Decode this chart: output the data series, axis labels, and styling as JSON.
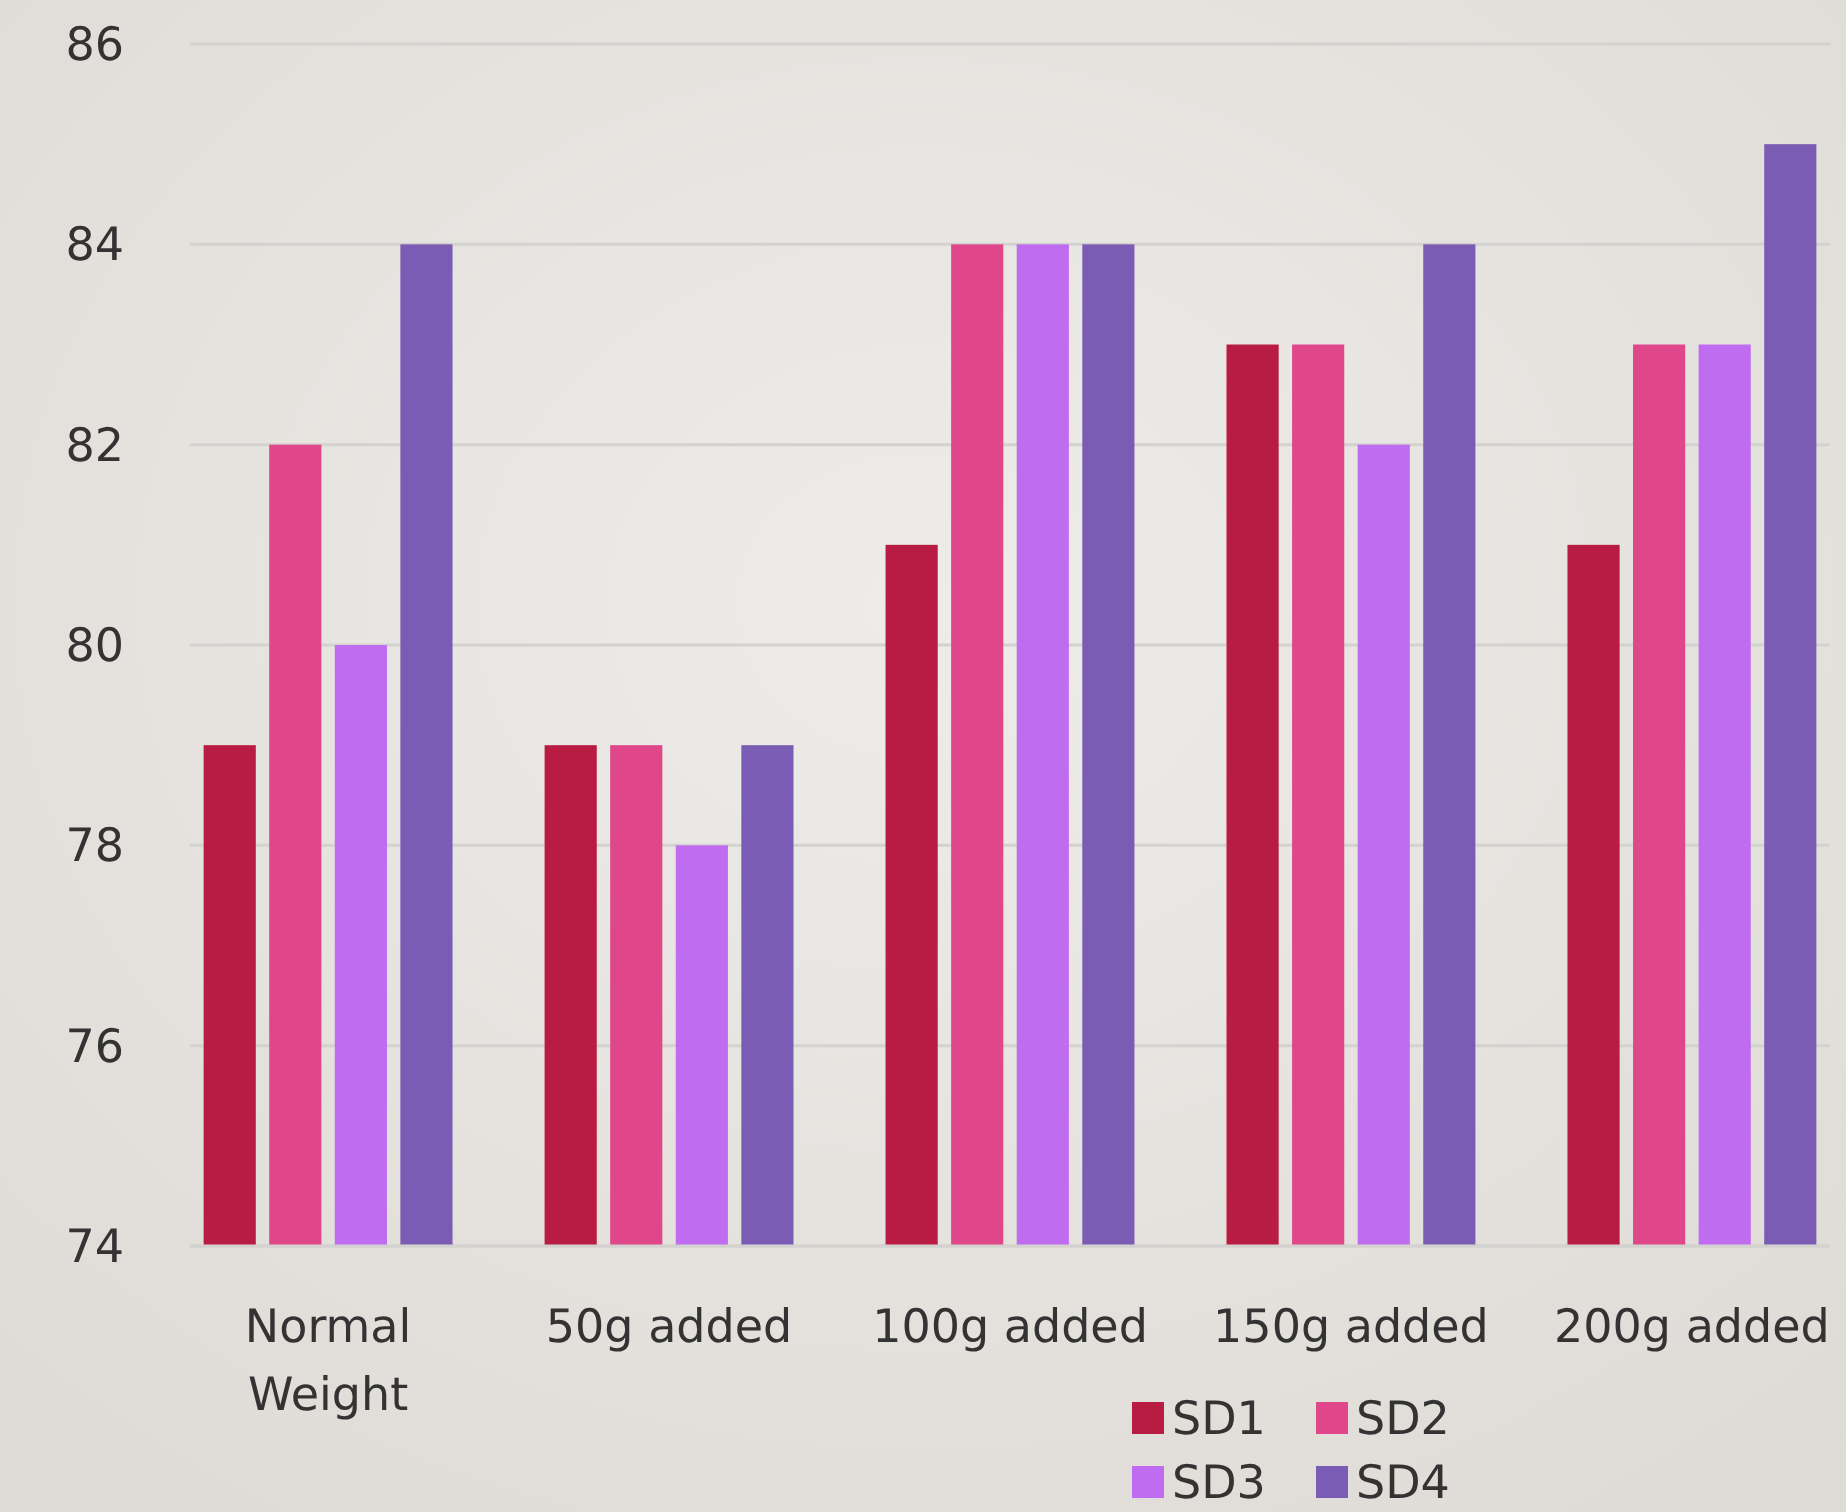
{
  "chart_data": {
    "type": "bar",
    "categories": [
      "Normal Weight",
      "50g added",
      "100g added",
      "150g added",
      "200g added"
    ],
    "series": [
      {
        "name": "SD1",
        "color": "#b91c42",
        "values": [
          79,
          79,
          81,
          83,
          81
        ]
      },
      {
        "name": "SD2",
        "color": "#e0468a",
        "values": [
          82,
          79,
          84,
          83,
          83
        ]
      },
      {
        "name": "SD3",
        "color": "#bf6cf0",
        "values": [
          80,
          78,
          84,
          82,
          83
        ]
      },
      {
        "name": "SD4",
        "color": "#7a5cb4",
        "values": [
          84,
          79,
          84,
          84,
          85
        ]
      }
    ],
    "ylim": [
      74,
      86
    ],
    "yticks": [
      74,
      76,
      78,
      80,
      82,
      84,
      86
    ],
    "grid": "y",
    "legend": "bottom"
  }
}
